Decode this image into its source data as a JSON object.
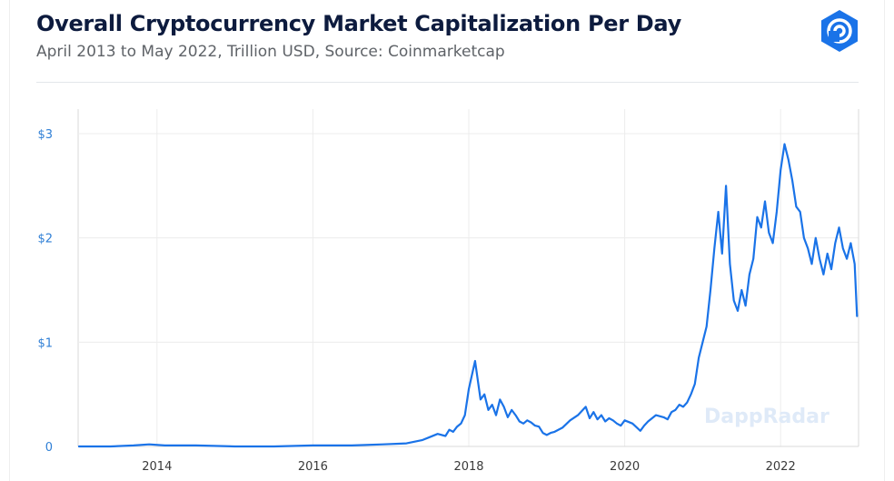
{
  "header": {
    "title": "Overall Cryptocurrency Market Capitalization Per Day",
    "subtitle": "April 2013 to May 2022, Trillion USD, Source: Coinmarketcap"
  },
  "brand": {
    "logo_icon": "dappradar-logo-icon",
    "watermark": "DappRadar",
    "accent": "#1a73e8"
  },
  "chart_data": {
    "type": "line",
    "title": "Overall Cryptocurrency Market Capitalization Per Day",
    "subtitle": "April 2013 to May 2022, Trillion USD, Source: Coinmarketcap",
    "xlabel": "",
    "ylabel": "",
    "xlim": [
      2013.0,
      2023.0
    ],
    "ylim": [
      0,
      3.3
    ],
    "x_ticks": [
      2014,
      2016,
      2018,
      2020,
      2022
    ],
    "x_tick_labels": [
      "2014",
      "2016",
      "2018",
      "2020",
      "2022"
    ],
    "y_ticks": [
      0,
      1,
      2,
      3
    ],
    "y_tick_labels": [
      "0",
      "$1",
      "$2",
      "$3"
    ],
    "grid": true,
    "series": [
      {
        "color": "#1a73e8",
        "x": [
          2013.0,
          2013.4,
          2013.7,
          2013.9,
          2014.1,
          2014.5,
          2015.0,
          2015.5,
          2016.0,
          2016.5,
          2016.9,
          2017.2,
          2017.4,
          2017.5,
          2017.6,
          2017.7,
          2017.75,
          2017.8,
          2017.85,
          2017.9,
          2017.95,
          2018.0,
          2018.08,
          2018.15,
          2018.2,
          2018.25,
          2018.3,
          2018.35,
          2018.4,
          2018.45,
          2018.5,
          2018.55,
          2018.6,
          2018.65,
          2018.7,
          2018.75,
          2018.8,
          2018.85,
          2018.9,
          2018.95,
          2019.0,
          2019.05,
          2019.1,
          2019.2,
          2019.3,
          2019.4,
          2019.5,
          2019.55,
          2019.6,
          2019.65,
          2019.7,
          2019.75,
          2019.8,
          2019.85,
          2019.9,
          2019.95,
          2020.0,
          2020.1,
          2020.2,
          2020.25,
          2020.3,
          2020.4,
          2020.5,
          2020.55,
          2020.6,
          2020.65,
          2020.7,
          2020.75,
          2020.8,
          2020.85,
          2020.9,
          2020.95,
          2021.0,
          2021.05,
          2021.1,
          2021.15,
          2021.2,
          2021.25,
          2021.3,
          2021.35,
          2021.4,
          2021.45,
          2021.5,
          2021.55,
          2021.6,
          2021.65,
          2021.7,
          2021.75,
          2021.8,
          2021.85,
          2021.9,
          2021.95,
          2022.0,
          2022.05,
          2022.1,
          2022.15,
          2022.2,
          2022.25,
          2022.3,
          2022.35,
          2022.4,
          2022.45,
          2022.5,
          2022.55,
          2022.6,
          2022.65,
          2022.7,
          2022.75,
          2022.8,
          2022.85,
          2022.9,
          2022.95,
          2022.98
        ],
        "y": [
          0.0,
          0.0,
          0.01,
          0.02,
          0.01,
          0.01,
          0.0,
          0.0,
          0.01,
          0.01,
          0.02,
          0.03,
          0.06,
          0.09,
          0.12,
          0.1,
          0.16,
          0.14,
          0.19,
          0.22,
          0.3,
          0.55,
          0.82,
          0.45,
          0.5,
          0.35,
          0.4,
          0.3,
          0.45,
          0.38,
          0.28,
          0.35,
          0.3,
          0.24,
          0.22,
          0.25,
          0.23,
          0.2,
          0.19,
          0.13,
          0.11,
          0.13,
          0.14,
          0.18,
          0.25,
          0.3,
          0.38,
          0.27,
          0.33,
          0.26,
          0.3,
          0.24,
          0.27,
          0.25,
          0.22,
          0.2,
          0.25,
          0.22,
          0.15,
          0.2,
          0.24,
          0.3,
          0.28,
          0.26,
          0.33,
          0.35,
          0.4,
          0.38,
          0.42,
          0.5,
          0.6,
          0.85,
          1.0,
          1.15,
          1.5,
          1.9,
          2.25,
          1.85,
          2.5,
          1.75,
          1.4,
          1.3,
          1.5,
          1.35,
          1.65,
          1.8,
          2.2,
          2.1,
          2.35,
          2.05,
          1.95,
          2.25,
          2.65,
          2.9,
          2.75,
          2.55,
          2.3,
          2.25,
          2.0,
          1.9,
          1.75,
          2.0,
          1.8,
          1.65,
          1.85,
          1.7,
          1.95,
          2.1,
          1.9,
          1.8,
          1.95,
          1.75,
          1.25
        ]
      }
    ]
  }
}
